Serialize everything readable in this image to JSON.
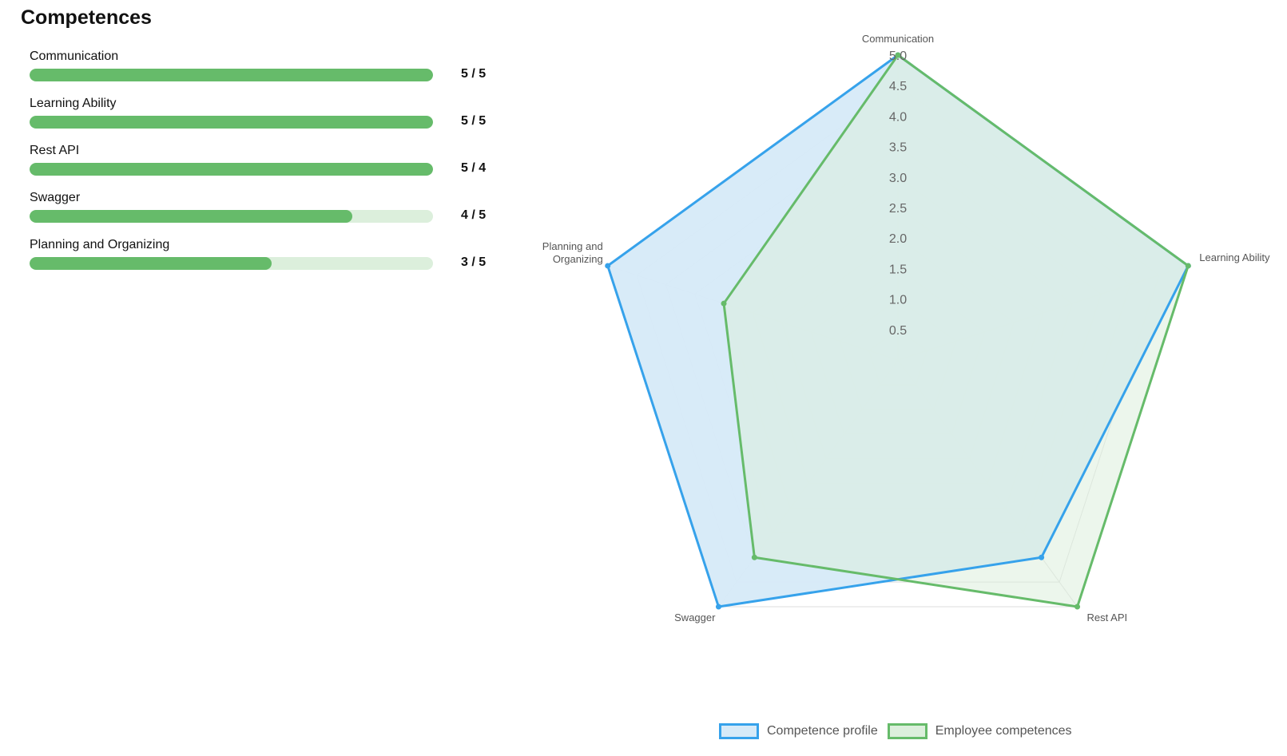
{
  "page": {
    "title": "Competences"
  },
  "competences": [
    {
      "name": "Communication",
      "score_label": "5 / 5",
      "level_fraction": 1.0
    },
    {
      "name": "Learning Ability",
      "score_label": "5 / 5",
      "level_fraction": 1.0
    },
    {
      "name": "Rest API",
      "score_label": "5 / 4",
      "level_fraction": 1.0
    },
    {
      "name": "Swagger",
      "score_label": "4 / 5",
      "level_fraction": 0.8
    },
    {
      "name": "Planning and Organizing",
      "score_label": "3 / 5",
      "level_fraction": 0.6
    }
  ],
  "colors": {
    "bar_fill": "#66bb6a",
    "bar_track": "#dcefdc",
    "profile_line": "#36a2eb",
    "profile_fill": "#d6eaf8",
    "employee_line": "#66bb6a",
    "employee_fill": "#dcefdc",
    "grid": "#dddddd",
    "tick_label": "#666666"
  },
  "chart_data": {
    "type": "radar",
    "axes": [
      "Communication",
      "Learning Ability",
      "Rest API",
      "Swagger",
      "Planning and Organizing"
    ],
    "axis_labels": [
      [
        "Communication"
      ],
      [
        "Learning Ability"
      ],
      [
        "Rest API"
      ],
      [
        "Swagger"
      ],
      [
        "Planning and",
        "Organizing"
      ]
    ],
    "r_range": [
      0,
      5
    ],
    "r_step": 0.5,
    "ticks": [
      "0.5",
      "1.0",
      "1.5",
      "2.0",
      "2.5",
      "3.0",
      "3.5",
      "4.0",
      "4.5",
      "5.0"
    ],
    "grid": true,
    "legend_position": "bottom",
    "series": [
      {
        "name": "Competence profile",
        "values": [
          5,
          5,
          4,
          5,
          5
        ]
      },
      {
        "name": "Employee competences",
        "values": [
          5,
          5,
          5,
          4,
          3
        ]
      }
    ]
  }
}
